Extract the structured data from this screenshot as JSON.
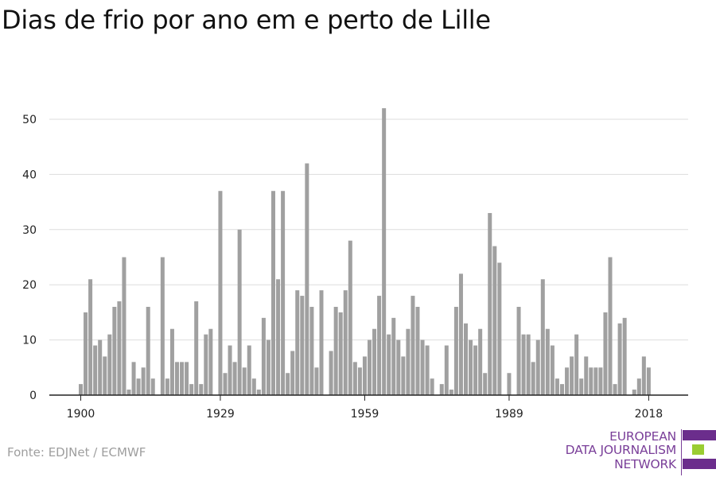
{
  "title": "Dias de frio por ano em e perto de Lille",
  "source": "Fonte: EDJNet / ECMWF",
  "logo": {
    "line1": "EUROPEAN",
    "line2": "DATA JOURNALISM",
    "line3": "NETWORK",
    "colors": {
      "purple": "#6b2d8c",
      "green": "#9acd32"
    }
  },
  "colors": {
    "bar": "#a0a0a0",
    "grid": "#dddddd",
    "axis": "#222222",
    "text": "#222222"
  },
  "chart_data": {
    "type": "bar",
    "title": "Dias de frio por ano em e perto de Lille",
    "xlabel": "",
    "ylabel": "",
    "ylim": [
      0,
      52
    ],
    "yticks": [
      0,
      10,
      20,
      30,
      40,
      50
    ],
    "xticks": [
      1900,
      1929,
      1959,
      1989,
      2018
    ],
    "grid": true,
    "x": [
      1900,
      1901,
      1902,
      1903,
      1904,
      1905,
      1906,
      1907,
      1908,
      1909,
      1910,
      1911,
      1912,
      1913,
      1914,
      1915,
      1916,
      1917,
      1918,
      1919,
      1920,
      1921,
      1922,
      1923,
      1924,
      1925,
      1926,
      1927,
      1928,
      1929,
      1930,
      1931,
      1932,
      1933,
      1934,
      1935,
      1936,
      1937,
      1938,
      1939,
      1940,
      1941,
      1942,
      1943,
      1944,
      1945,
      1946,
      1947,
      1948,
      1949,
      1950,
      1951,
      1952,
      1953,
      1954,
      1955,
      1956,
      1957,
      1958,
      1959,
      1960,
      1961,
      1962,
      1963,
      1964,
      1965,
      1966,
      1967,
      1968,
      1969,
      1970,
      1971,
      1972,
      1973,
      1974,
      1975,
      1976,
      1977,
      1978,
      1979,
      1980,
      1981,
      1982,
      1983,
      1984,
      1985,
      1986,
      1987,
      1988,
      1989,
      1990,
      1991,
      1992,
      1993,
      1994,
      1995,
      1996,
      1997,
      1998,
      1999,
      2000,
      2001,
      2002,
      2003,
      2004,
      2005,
      2006,
      2007,
      2008,
      2009,
      2010,
      2011,
      2012,
      2013,
      2014,
      2015,
      2016,
      2017,
      2018
    ],
    "values": [
      2,
      15,
      21,
      9,
      10,
      7,
      11,
      16,
      17,
      25,
      1,
      6,
      3,
      5,
      16,
      3,
      0,
      25,
      3,
      12,
      6,
      6,
      6,
      2,
      17,
      2,
      11,
      12,
      0,
      37,
      4,
      9,
      6,
      30,
      5,
      9,
      3,
      1,
      14,
      10,
      37,
      21,
      37,
      4,
      8,
      19,
      18,
      42,
      16,
      5,
      19,
      0,
      8,
      16,
      15,
      19,
      28,
      6,
      5,
      7,
      10,
      12,
      18,
      52,
      11,
      14,
      10,
      7,
      12,
      18,
      16,
      10,
      9,
      3,
      0,
      2,
      9,
      1,
      16,
      22,
      13,
      10,
      9,
      12,
      4,
      33,
      27,
      24,
      0,
      4,
      0,
      16,
      11,
      11,
      6,
      10,
      21,
      12,
      9,
      3,
      2,
      5,
      7,
      11,
      3,
      7,
      5,
      5,
      5,
      15,
      25,
      2,
      13,
      14,
      0,
      1,
      3,
      7,
      5
    ]
  }
}
